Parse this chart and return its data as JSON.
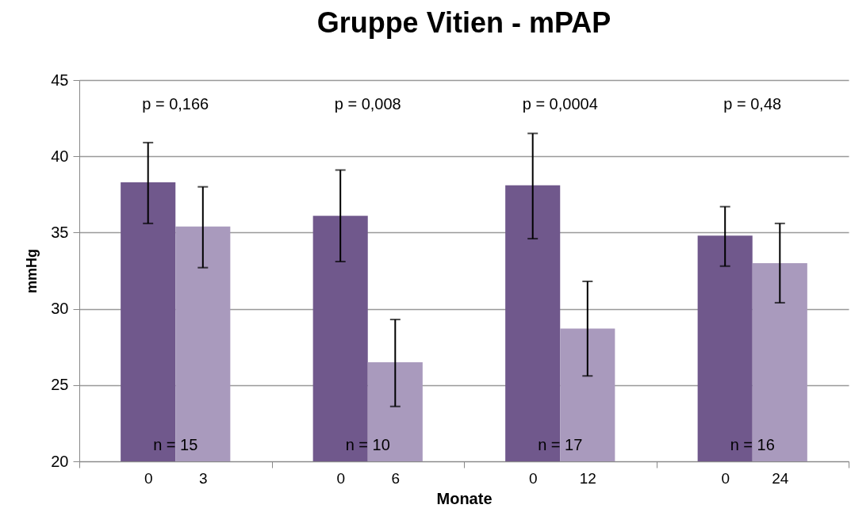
{
  "chart_data": {
    "type": "bar",
    "title": "Gruppe Vitien - mPAP",
    "xlabel": "Monate",
    "ylabel": "mmHg",
    "categories": [
      "0",
      "3",
      "0",
      "6",
      "0",
      "12",
      "0",
      "24"
    ],
    "values": [
      38.3,
      35.4,
      36.1,
      26.5,
      38.1,
      28.7,
      34.8,
      33.0
    ],
    "colors": [
      "#70588c",
      "#a99abd",
      "#70588c",
      "#a99abd",
      "#70588c",
      "#a99abd",
      "#70588c",
      "#a99abd"
    ],
    "errors": [
      [
        35.6,
        40.9
      ],
      [
        32.7,
        38.0
      ],
      [
        33.1,
        39.1
      ],
      [
        23.6,
        29.3
      ],
      [
        34.6,
        41.5
      ],
      [
        25.6,
        31.8
      ],
      [
        32.8,
        36.7
      ],
      [
        30.4,
        35.6
      ]
    ],
    "ylim": [
      20,
      45
    ],
    "yticks": [
      20,
      25,
      30,
      35,
      40,
      45
    ],
    "grid": "y",
    "legend": false,
    "annotations": [
      "p = 0,166",
      "p = 0,008",
      "p = 0,0004",
      "p = 0,48",
      "n = 15",
      "n = 10",
      "n = 17",
      "n = 16"
    ]
  }
}
